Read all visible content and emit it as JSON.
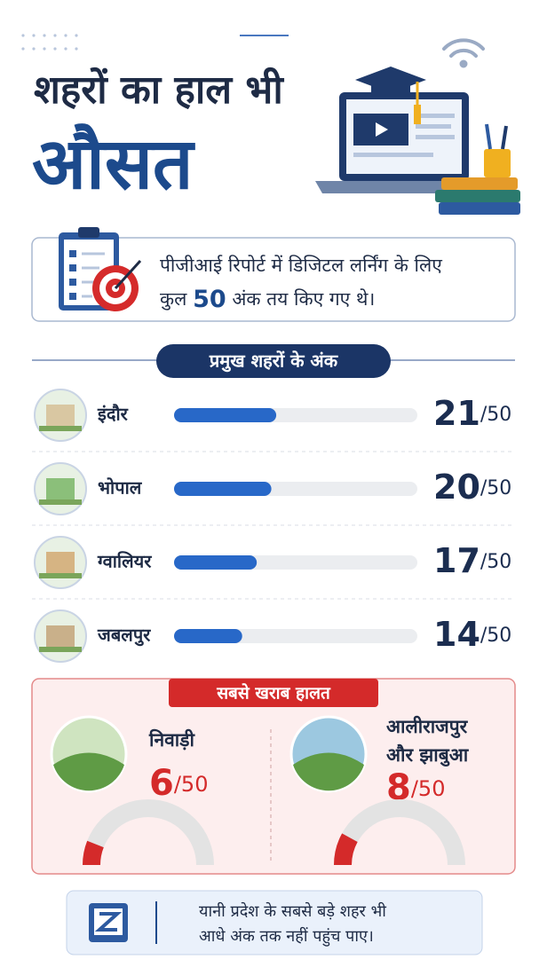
{
  "header": {
    "title_line1": "शहरों का हाल भी",
    "title_line2": "औसत"
  },
  "info": {
    "text_line1": "पीजीआई रिपोर्ट में डिजिटल लर्निंग के लिए",
    "text_before": "कुल",
    "total": 50,
    "text_after": "अंक तय किए गए थे।"
  },
  "cities": {
    "title": "प्रमुख शहरों के अंक",
    "max": {
      "value": 50,
      "label": "/50"
    },
    "items": [
      {
        "name": "इंदौर",
        "score": 21
      },
      {
        "name": "भोपाल",
        "score": 20
      },
      {
        "name": "ग्वालियर",
        "score": 17
      },
      {
        "name": "जबलपुर",
        "score": 14
      }
    ]
  },
  "worst": {
    "title": "सबसे खराब हालत",
    "items": [
      {
        "name_lines": [
          "निवाड़ी"
        ],
        "score": 6
      },
      {
        "name_lines": [
          "आलीराजपुर",
          "और झाबुआ"
        ],
        "score": 8
      }
    ]
  },
  "footer": {
    "text_line1": "यानी प्रदेश के सबसे बड़े शहर भी",
    "text_line2": "आधे अंक तक नहीं पहुंच पाए।"
  }
}
